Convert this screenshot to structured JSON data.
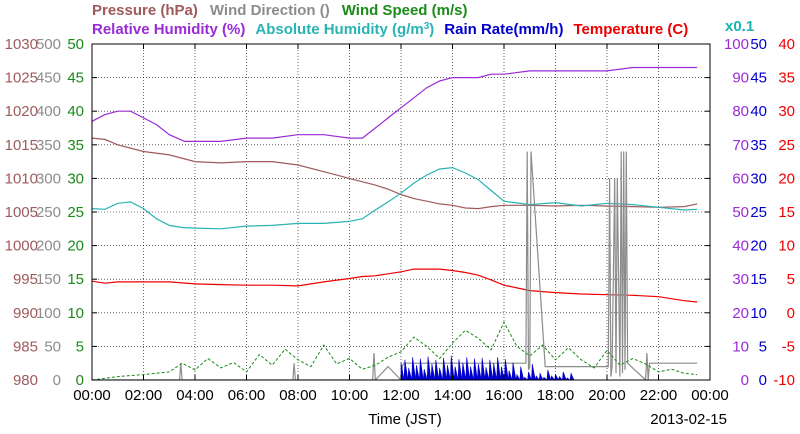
{
  "chart_data": {
    "type": "line",
    "legend": {
      "row1": [
        {
          "label": "Pressure (hPa)",
          "color": "#a05a5a"
        },
        {
          "label": "Wind Direction (",
          "suffix": ")",
          "color": "#8c8c8c"
        },
        {
          "label": "Wind Speed (m/s)",
          "color": "#1a8c1a"
        }
      ],
      "row2": [
        {
          "label": "Relative Humidity (%)",
          "color": "#9a2bd6"
        },
        {
          "label": "Absolute Humidity (g/m",
          "sup": "3",
          "suffix": ")",
          "color": "#2ab3b3"
        },
        {
          "label": "Rain Rate(mm/h)",
          "color": "#0000cc"
        },
        {
          "label": "Temperature (",
          "suffix": "C)",
          "color": "#ee0000"
        }
      ],
      "scale_note": "x0.1",
      "scale_note_color": "#1ab3b3"
    },
    "xlabel": "Time (JST)",
    "date": "2013-02-15",
    "x_ticks": [
      "00:00",
      "02:00",
      "04:00",
      "06:00",
      "08:00",
      "10:00",
      "12:00",
      "14:00",
      "16:00",
      "18:00",
      "20:00",
      "22:00",
      "00:00"
    ],
    "x_range_hours": [
      0,
      24
    ],
    "grid": true,
    "axes": {
      "pressure": {
        "ticks": [
          "980",
          "985",
          "990",
          "995",
          "1000",
          "1005",
          "1010",
          "1015",
          "1020",
          "1025",
          "1030"
        ],
        "color": "#a05a5a",
        "range": [
          980,
          1030
        ]
      },
      "wind_direction": {
        "ticks": [
          "0",
          "50",
          "100",
          "150",
          "200",
          "250",
          "300",
          "350",
          "400",
          "450",
          "500"
        ],
        "color": "#8c8c8c",
        "range": [
          0,
          500
        ]
      },
      "wind_speed": {
        "ticks": [
          "0",
          "5",
          "10",
          "15",
          "20",
          "25",
          "30",
          "35",
          "40",
          "45",
          "50"
        ],
        "color": "#1a8c1a",
        "range": [
          0,
          50
        ]
      },
      "relative_humidity": {
        "ticks": [
          "0",
          "10",
          "20",
          "30",
          "40",
          "50",
          "60",
          "70",
          "80",
          "90",
          "100"
        ],
        "color": "#9a2bd6",
        "range": [
          0,
          100
        ]
      },
      "abs_humidity_rain": {
        "ticks": [
          "0",
          "5",
          "10",
          "15",
          "20",
          "25",
          "30",
          "35",
          "40",
          "45",
          "50"
        ],
        "color": "#0000cc",
        "range": [
          0,
          50
        ]
      },
      "temperature": {
        "ticks": [
          "-10",
          "-5",
          "0",
          "5",
          "10",
          "15",
          "20",
          "25",
          "30",
          "35",
          "40"
        ],
        "color": "#ee0000",
        "range": [
          -10,
          40
        ]
      }
    },
    "series": [
      {
        "name": "Relative Humidity (%)",
        "color": "#9a2bd6",
        "axis": "relative_humidity",
        "x": [
          0,
          0.5,
          1,
          1.5,
          2,
          2.5,
          3,
          3.3,
          3.6,
          4,
          5,
          6,
          7,
          8,
          9,
          10,
          10.5,
          11,
          11.5,
          12,
          12.5,
          13,
          13.5,
          14,
          14.5,
          15,
          15.5,
          16,
          17,
          18,
          19,
          20,
          21,
          22,
          23,
          23.5
        ],
        "values": [
          77,
          79,
          80,
          80,
          78,
          76,
          73,
          72,
          71,
          71,
          71,
          72,
          72,
          73,
          73,
          72,
          72,
          75,
          78,
          81,
          84,
          87,
          89,
          90,
          90,
          90,
          91,
          91,
          92,
          92,
          92,
          92,
          93,
          93,
          93,
          93
        ]
      },
      {
        "name": "Pressure (hPa)",
        "color": "#a05a5a",
        "axis": "pressure",
        "x": [
          0,
          0.5,
          1,
          2,
          3,
          4,
          5,
          6,
          7,
          8,
          9,
          10,
          10.5,
          11,
          11.5,
          12,
          12.5,
          13,
          13.5,
          14,
          14.5,
          15,
          15.5,
          16,
          17,
          18,
          19,
          20,
          21,
          22,
          23,
          23.5
        ],
        "values": [
          1016,
          1015.8,
          1015,
          1014,
          1013.5,
          1012.5,
          1012.3,
          1012.5,
          1012.5,
          1012,
          1011,
          1010,
          1009.5,
          1009,
          1008.4,
          1007.6,
          1007,
          1006.6,
          1006.2,
          1006,
          1005.6,
          1005.5,
          1005.8,
          1006,
          1006,
          1005.9,
          1006,
          1005.9,
          1005.8,
          1005.7,
          1005.8,
          1006.2
        ]
      },
      {
        "name": "Absolute Humidity (g/m3)",
        "color": "#2ab3b3",
        "axis": "abs_humidity_rain",
        "x": [
          0,
          0.5,
          1,
          1.5,
          2,
          2.5,
          3,
          3.5,
          4,
          5,
          6,
          7,
          8,
          9,
          10,
          10.5,
          11,
          11.5,
          12,
          12.5,
          13,
          13.5,
          14,
          14.5,
          15,
          15.5,
          16,
          17,
          18,
          19,
          20,
          21,
          22,
          23,
          23.5
        ],
        "values": [
          25.5,
          25.4,
          26.3,
          26.5,
          25.5,
          24,
          23,
          22.7,
          22.6,
          22.5,
          22.9,
          23,
          23.3,
          23.3,
          23.6,
          24,
          25.3,
          26.5,
          27.8,
          29.3,
          30.5,
          31.4,
          31.6,
          30.8,
          29.8,
          28.2,
          26.6,
          26.1,
          26.4,
          25.9,
          26.3,
          26.1,
          25.7,
          25.3,
          25.4
        ]
      },
      {
        "name": "Temperature (C)",
        "color": "#ee0000",
        "axis": "temperature",
        "x": [
          0,
          0.5,
          1,
          2,
          3,
          4,
          5,
          6,
          7,
          8,
          9,
          10,
          10.5,
          11,
          11.5,
          12,
          12.5,
          13,
          13.5,
          14,
          14.5,
          15,
          15.5,
          16,
          17,
          18,
          19,
          20,
          21,
          22,
          23,
          23.5
        ],
        "values": [
          4.7,
          4.4,
          4.6,
          4.6,
          4.6,
          4.3,
          4.2,
          4.1,
          4.1,
          4.0,
          4.6,
          5.1,
          5.4,
          5.5,
          5.8,
          6.1,
          6.5,
          6.5,
          6.5,
          6.3,
          6.0,
          5.6,
          4.9,
          4.1,
          3.3,
          3.0,
          2.8,
          2.7,
          2.6,
          2.4,
          1.8,
          1.6
        ]
      },
      {
        "name": "Wind Direction",
        "color": "#8c8c8c",
        "axis": "wind_direction",
        "x": [
          0,
          3.4,
          3.45,
          3.5,
          7.8,
          7.85,
          7.9,
          10.9,
          10.95,
          11,
          11.5,
          12,
          12.05,
          12.1,
          16.85,
          16.9,
          16.95,
          17,
          17.05,
          17.6,
          18.8,
          19.4,
          20.05,
          20.1,
          20.15,
          20.2,
          20.3,
          20.35,
          20.4,
          20.5,
          20.55,
          20.6,
          20.65,
          20.7,
          20.75,
          20.8,
          21.5,
          21.55,
          21.6,
          21.65,
          22,
          22.5,
          23.5
        ],
        "values": [
          0,
          0,
          25,
          0,
          0,
          25,
          0,
          0,
          40,
          0,
          20,
          0,
          20,
          25,
          25,
          340,
          15,
          20,
          340,
          20,
          20,
          20,
          20,
          300,
          5,
          20,
          300,
          10,
          300,
          5,
          340,
          10,
          340,
          15,
          340,
          25,
          0,
          40,
          0,
          25,
          25,
          25,
          25
        ]
      },
      {
        "name": "Rain Rate (mm/h)",
        "color": "#0000cc",
        "axis": "abs_humidity_rain",
        "x": [
          12.0,
          12.15,
          12.3,
          12.45,
          12.6,
          12.75,
          12.9,
          13.05,
          13.2,
          13.35,
          13.5,
          13.65,
          13.8,
          13.95,
          14.1,
          14.25,
          14.4,
          14.55,
          14.7,
          14.85,
          15.0,
          15.15,
          15.3,
          15.45,
          15.6,
          15.75,
          15.9,
          16.05,
          16.2,
          16.35,
          16.5,
          16.65,
          16.8,
          16.95,
          17.1,
          17.25,
          17.4,
          17.55,
          17.7,
          17.85,
          18.0,
          18.15,
          18.3,
          18.45,
          18.6
        ],
        "values": [
          2.6,
          3.0,
          1.8,
          3.4,
          2.2,
          3.2,
          1.6,
          3.5,
          2.4,
          3.0,
          1.8,
          3.3,
          2.2,
          3.6,
          2.0,
          3.1,
          2.6,
          3.4,
          2.0,
          3.2,
          2.4,
          3.3,
          1.9,
          3.0,
          2.5,
          3.4,
          2.0,
          3.1,
          1.4,
          2.6,
          0.8,
          2.0,
          0.4,
          1.2,
          2.4,
          0.6,
          1.0,
          0.4,
          1.5,
          0.6,
          0.8,
          0.5,
          1.2,
          0.3,
          1.0
        ]
      },
      {
        "name": "Wind Speed (m/s)",
        "color": "#1a8c1a",
        "axis": "wind_speed",
        "x": [
          0,
          1,
          2,
          3,
          3.5,
          4,
          4.5,
          5,
          5.5,
          6,
          6.5,
          7,
          7.5,
          8,
          8.5,
          9,
          9.5,
          10,
          10.5,
          11,
          11.5,
          12,
          12.5,
          13,
          13.5,
          14,
          14.5,
          15,
          15.5,
          16,
          16.5,
          17,
          17.5,
          18,
          18.5,
          19,
          19.5,
          20,
          20.5,
          21,
          21.5,
          22,
          22.5,
          23,
          23.5
        ],
        "values": [
          0,
          0.5,
          0.8,
          1.2,
          2.5,
          1.5,
          3.2,
          1.8,
          2.6,
          1.2,
          3.8,
          2.2,
          4.6,
          3.0,
          2.0,
          5.2,
          2.4,
          3.2,
          1.6,
          2.2,
          3.4,
          4.2,
          6.4,
          5.0,
          3.2,
          5.5,
          7.4,
          6.2,
          4.5,
          8.6,
          5.0,
          3.6,
          5.2,
          3.0,
          4.8,
          3.0,
          1.8,
          4.4,
          2.2,
          3.2,
          2.4,
          1.2,
          1.6,
          1.0,
          0.8
        ]
      }
    ]
  }
}
